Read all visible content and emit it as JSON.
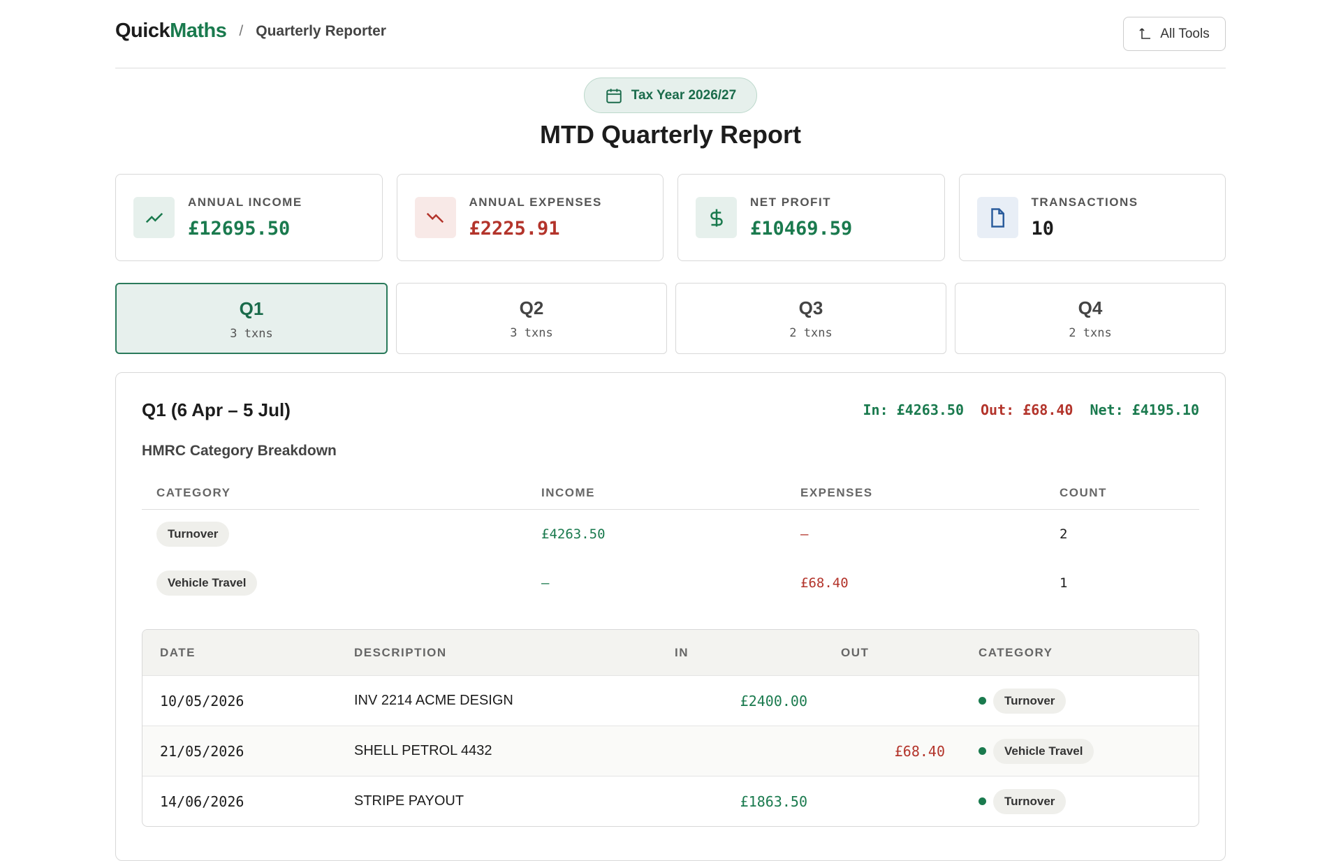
{
  "header": {
    "brand_a": "Quick",
    "brand_b": "Maths",
    "separator": "/",
    "page": "Quarterly Reporter",
    "button": "All Tools"
  },
  "badge": "Tax Year 2026/27",
  "title": "MTD Quarterly Report",
  "stats": [
    {
      "label": "ANNUAL INCOME",
      "value": "£12695.50"
    },
    {
      "label": "ANNUAL EXPENSES",
      "value": "£2225.91"
    },
    {
      "label": "NET PROFIT",
      "value": "£10469.59"
    },
    {
      "label": "TRANSACTIONS",
      "value": "10"
    }
  ],
  "quarters": [
    {
      "name": "Q1",
      "count": "3 txns"
    },
    {
      "name": "Q2",
      "count": "3 txns"
    },
    {
      "name": "Q3",
      "count": "2 txns"
    },
    {
      "name": "Q4",
      "count": "2 txns"
    }
  ],
  "panel": {
    "title": "Q1 (6 Apr – 5 Jul)",
    "summary": {
      "in": "In: £4263.50",
      "out": "Out: £68.40",
      "net": "Net: £4195.10"
    },
    "breakdown": {
      "title": "HMRC Category Breakdown",
      "columns": [
        "CATEGORY",
        "INCOME",
        "EXPENSES",
        "COUNT"
      ],
      "rows": [
        [
          "Turnover",
          "£4263.50",
          "–",
          "2"
        ],
        [
          "Vehicle Travel",
          "–",
          "£68.40",
          "1"
        ]
      ]
    },
    "transactions": {
      "columns": [
        "DATE",
        "DESCRIPTION",
        "IN",
        "OUT",
        "CATEGORY"
      ],
      "rows": [
        [
          "10/05/2026",
          "INV 2214 ACME DESIGN",
          "£2400.00",
          null,
          "Turnover"
        ],
        [
          "21/05/2026",
          "SHELL PETROL 4432",
          null,
          "£68.40",
          "Vehicle Travel"
        ],
        [
          "14/06/2026",
          "STRIPE PAYOUT",
          "£1863.50",
          null,
          "Turnover"
        ]
      ]
    }
  }
}
